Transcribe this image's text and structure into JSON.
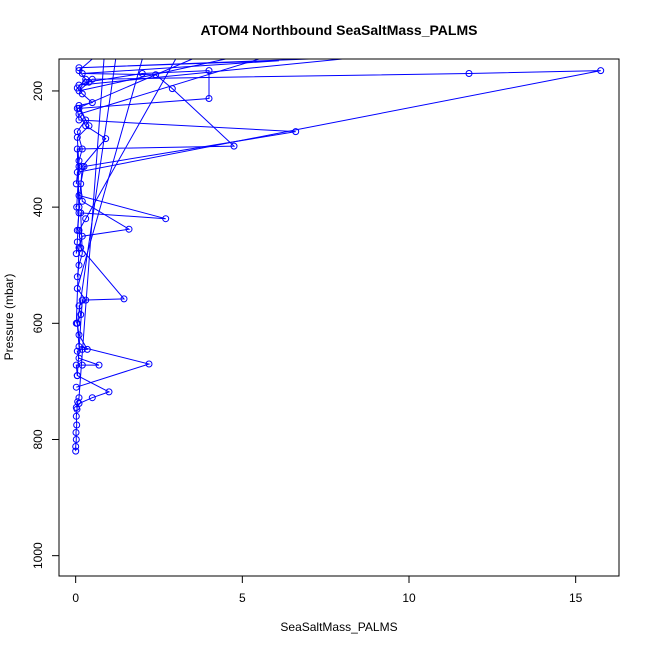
{
  "colors": {
    "series": "#0000ff",
    "axis": "#000000",
    "background": "#ffffff"
  },
  "chart_data": {
    "type": "line",
    "title": "ATOM4 Northbound SeaSaltMass_PALMS",
    "xlabel": "SeaSaltMass_PALMS",
    "ylabel": "Pressure (mbar)",
    "xlim": [
      -0.5,
      16.3
    ],
    "ylim": [
      1035,
      145
    ],
    "y_reversed": true,
    "grid": false,
    "legend": "none",
    "x_ticks": [
      0,
      5,
      10,
      15
    ],
    "y_ticks": [
      200,
      400,
      600,
      800,
      1000
    ],
    "marker": "open-circle",
    "series": [
      {
        "points": [
          [
            0.0,
            820
          ],
          [
            0.0,
            812
          ],
          [
            0.02,
            800
          ],
          [
            0.01,
            788
          ],
          [
            0.03,
            775
          ],
          [
            0.02,
            760
          ],
          [
            0.04,
            748
          ],
          [
            0.06,
            735
          ],
          [
            0.1,
            728
          ],
          [
            0.85,
            145
          ]
        ]
      },
      {
        "points": [
          [
            0.02,
            745
          ],
          [
            0.1,
            738
          ],
          [
            0.5,
            728
          ],
          [
            1.0,
            718
          ],
          [
            0.05,
            690
          ],
          [
            0.02,
            672
          ],
          [
            0.2,
            672
          ],
          [
            0.7,
            672
          ],
          [
            0.1,
            660
          ],
          [
            0.05,
            648
          ],
          [
            0.2,
            645
          ],
          [
            0.35,
            645
          ],
          [
            0.1,
            620
          ],
          [
            0.05,
            600
          ],
          [
            1.2,
            145
          ]
        ]
      },
      {
        "points": [
          [
            0.02,
            710
          ],
          [
            2.2,
            670
          ],
          [
            0.1,
            640
          ],
          [
            0.05,
            600
          ],
          [
            0.15,
            585
          ],
          [
            0.1,
            570
          ],
          [
            0.3,
            560
          ],
          [
            0.05,
            540
          ],
          [
            2.0,
            145
          ]
        ]
      },
      {
        "points": [
          [
            0.05,
            690
          ],
          [
            0.2,
            560
          ],
          [
            1.45,
            558
          ],
          [
            0.15,
            470
          ],
          [
            0.1,
            440
          ],
          [
            0.3,
            420
          ],
          [
            3.0,
            145
          ]
        ]
      },
      {
        "points": [
          [
            0.02,
            600
          ],
          [
            0.1,
            470
          ],
          [
            0.2,
            450
          ],
          [
            1.6,
            438
          ],
          [
            0.2,
            390
          ],
          [
            0.15,
            360
          ],
          [
            0.25,
            330
          ],
          [
            6.6,
            270
          ],
          [
            0.1,
            250
          ],
          [
            0.05,
            230
          ],
          [
            3.5,
            145
          ]
        ]
      },
      {
        "points": [
          [
            0.05,
            520
          ],
          [
            0.1,
            500
          ],
          [
            0.2,
            480
          ],
          [
            0.15,
            410
          ],
          [
            2.7,
            420
          ],
          [
            0.1,
            380
          ],
          [
            0.05,
            340
          ],
          [
            15.75,
            165
          ],
          [
            11.8,
            170
          ],
          [
            0.5,
            180
          ],
          [
            0.1,
            200
          ],
          [
            4.5,
            145
          ]
        ]
      },
      {
        "points": [
          [
            0.02,
            480
          ],
          [
            0.05,
            460
          ],
          [
            0.1,
            400
          ],
          [
            0.2,
            330
          ],
          [
            0.9,
            282
          ],
          [
            0.3,
            260
          ],
          [
            0.1,
            240
          ],
          [
            5.5,
            145
          ]
        ]
      },
      {
        "points": [
          [
            0.05,
            440
          ],
          [
            0.1,
            410
          ],
          [
            0.05,
            300
          ],
          [
            4.75,
            295
          ],
          [
            2.9,
            196
          ],
          [
            2.4,
            172
          ],
          [
            0.2,
            170
          ],
          [
            6.1,
            148
          ],
          [
            0.1,
            160
          ],
          [
            7.0,
            145
          ]
        ]
      },
      {
        "points": [
          [
            0.03,
            400
          ],
          [
            0.1,
            330
          ],
          [
            0.05,
            280
          ],
          [
            0.4,
            260
          ],
          [
            0.1,
            230
          ],
          [
            4.0,
            213
          ],
          [
            4.0,
            165
          ],
          [
            2.0,
            170
          ],
          [
            0.3,
            185
          ],
          [
            0.4,
            185
          ],
          [
            0.1,
            190
          ],
          [
            8.0,
            145
          ]
        ]
      },
      {
        "points": [
          [
            0.02,
            360
          ],
          [
            0.1,
            320
          ],
          [
            0.2,
            300
          ],
          [
            0.05,
            270
          ],
          [
            0.3,
            250
          ],
          [
            0.1,
            225
          ],
          [
            0.5,
            220
          ],
          [
            0.2,
            205
          ],
          [
            0.05,
            195
          ],
          [
            0.3,
            180
          ],
          [
            0.1,
            165
          ],
          [
            0.5,
            145
          ]
        ]
      }
    ]
  }
}
